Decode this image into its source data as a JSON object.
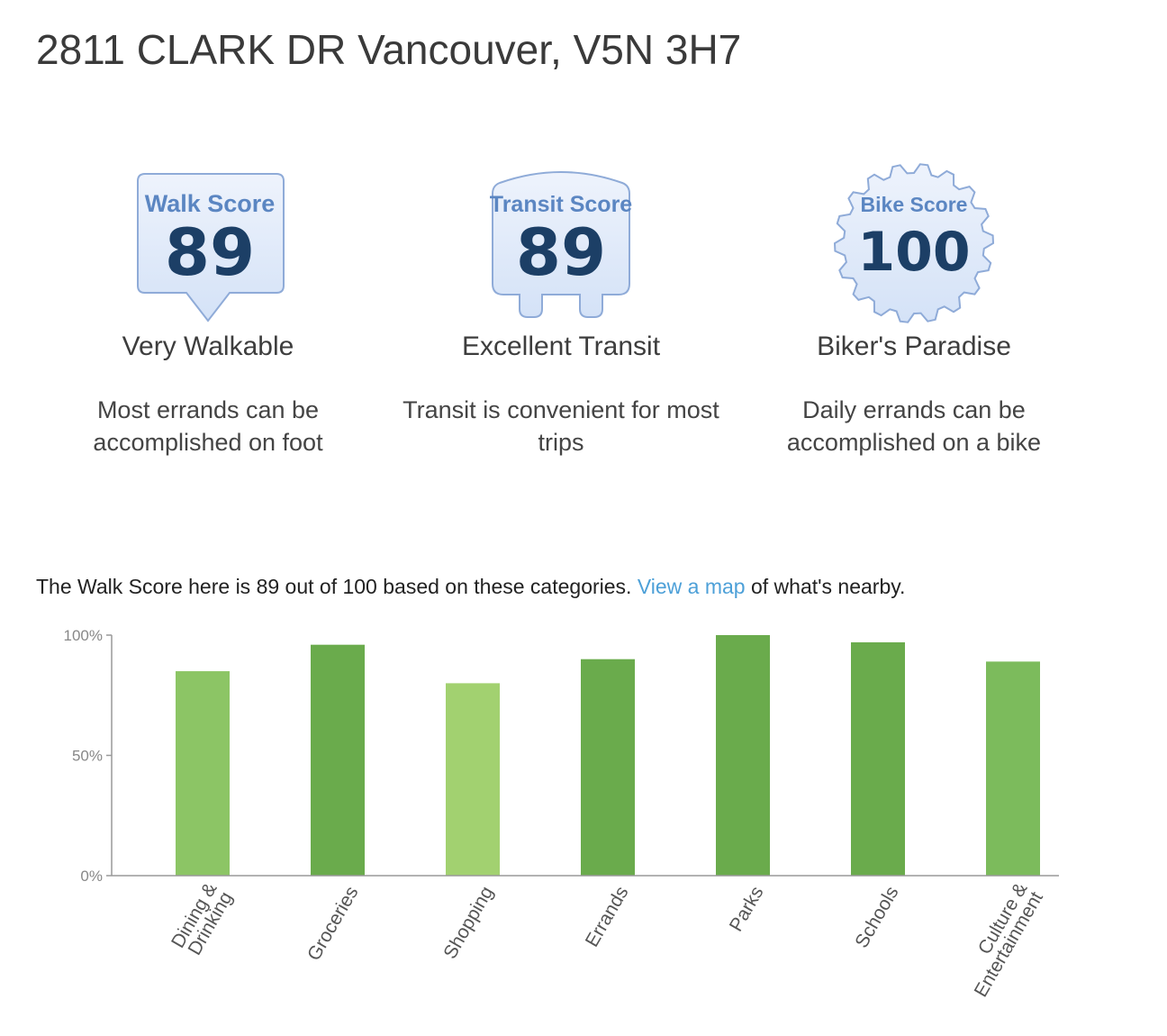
{
  "page": {
    "address": "2811 CLARK DR Vancouver, V5N 3H7"
  },
  "scores": {
    "walk": {
      "title": "Walk Score",
      "value": "89",
      "label": "Very Walkable",
      "description": "Most errands can be accomplished on foot"
    },
    "transit": {
      "title": "Transit Score",
      "value": "89",
      "label": "Excellent Transit",
      "description": "Transit is convenient for most trips"
    },
    "bike": {
      "title": "Bike Score",
      "value": "100",
      "label": "Biker's Paradise",
      "description": "Daily errands can be accomplished on a bike"
    }
  },
  "summary": {
    "before": "The Walk Score here is 89 out of 100 based on these categories. ",
    "link": "View a map",
    "after": " of what's nearby."
  },
  "colors": {
    "badge_fill": "#dde8f8",
    "badge_stroke": "#8fabd8",
    "link": "#4da0d8",
    "bar_shades": [
      "#8cc565",
      "#6aab4c",
      "#a2d170",
      "#6aab4c",
      "#6aab4c",
      "#6aab4c",
      "#7cbb5c"
    ]
  },
  "chart_data": {
    "type": "bar",
    "categories": [
      [
        "Dining &",
        "Drinking"
      ],
      [
        "Groceries"
      ],
      [
        "Shopping"
      ],
      [
        "Errands"
      ],
      [
        "Parks"
      ],
      [
        "Schools"
      ],
      [
        "Culture &",
        "Entertainment"
      ]
    ],
    "values": [
      85,
      96,
      80,
      90,
      100,
      97,
      89
    ],
    "y_ticks": [
      "100%",
      "50%",
      "0%"
    ],
    "y_tick_values": [
      100,
      50,
      0
    ],
    "ylim": [
      0,
      100
    ],
    "grid": false
  }
}
